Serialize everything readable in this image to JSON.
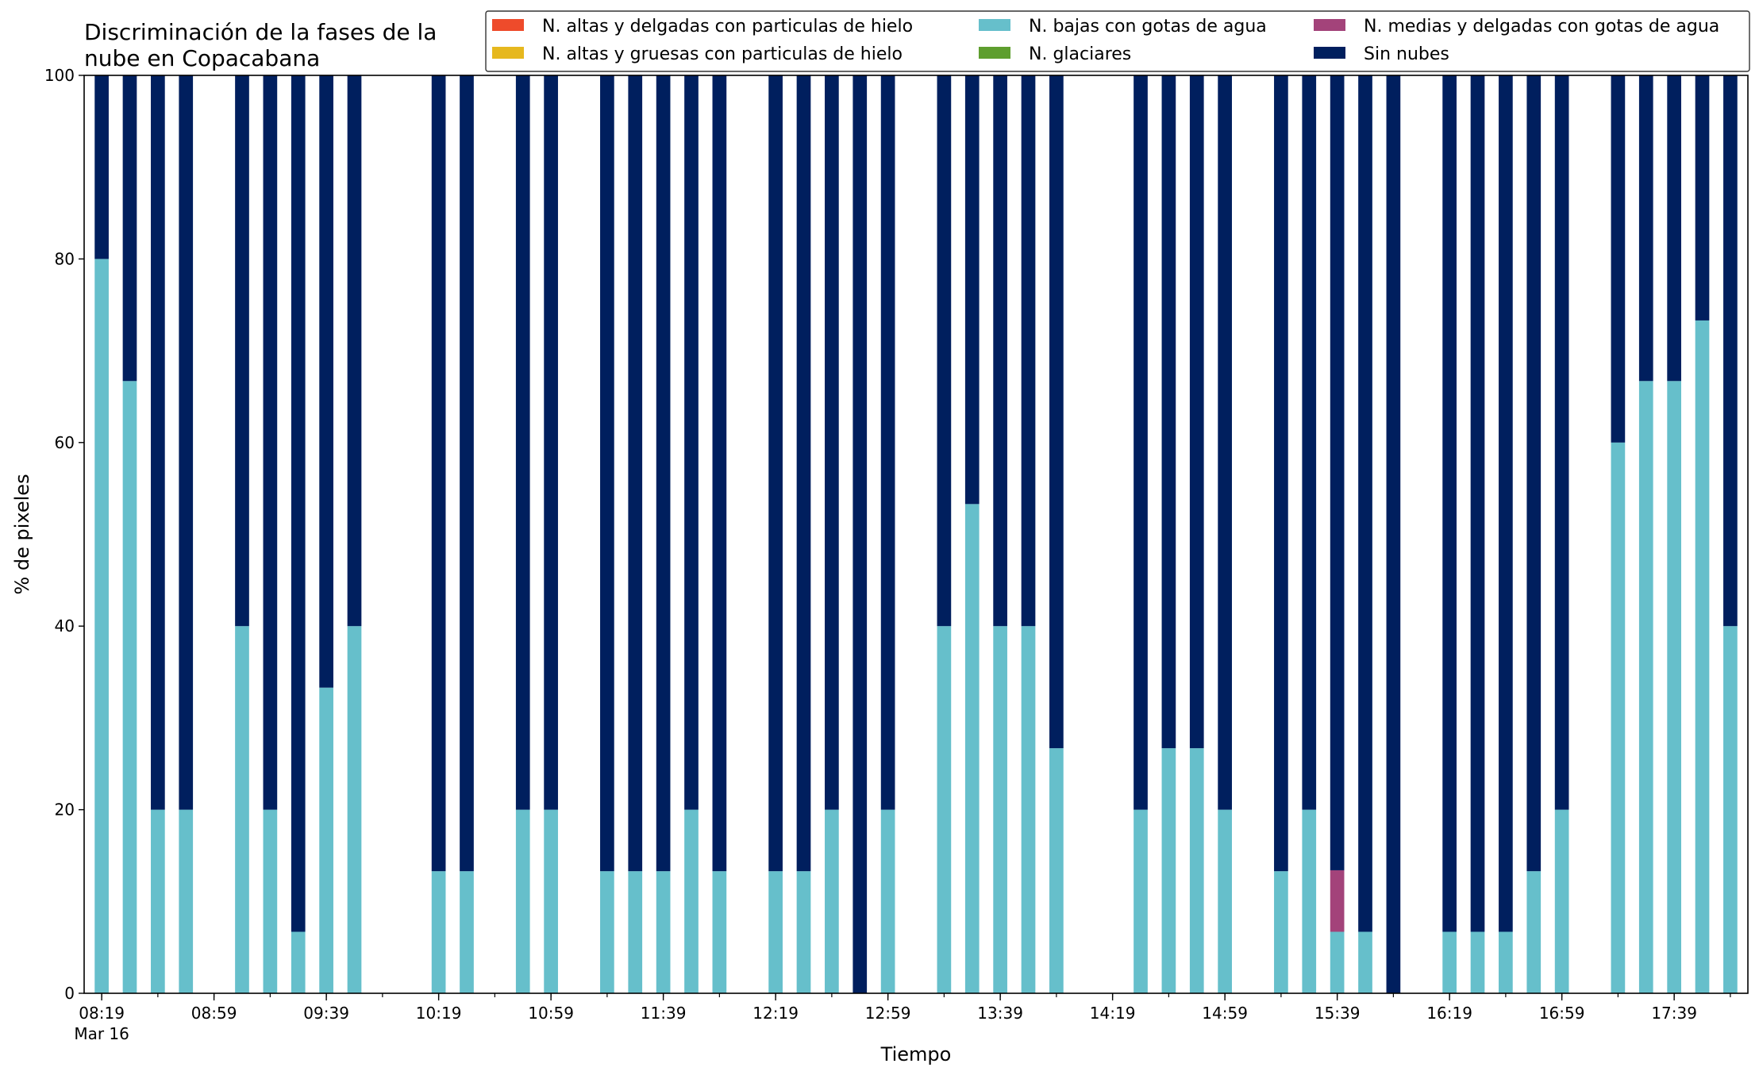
{
  "chart_data": {
    "type": "bar",
    "stacked": true,
    "title_lines": [
      "Discriminación de la fases de la",
      "nube en Copacabana"
    ],
    "xlabel": "Tiempo",
    "ylabel": "% de pixeles",
    "ylim": [
      0,
      100
    ],
    "yticks": [
      0,
      20,
      40,
      60,
      80,
      100
    ],
    "x_start": "08:19",
    "x_end": "17:59",
    "bar_step_minutes": 10,
    "xtick_labels": [
      "08:19",
      "08:59",
      "09:39",
      "10:19",
      "10:59",
      "11:39",
      "12:19",
      "12:59",
      "13:39",
      "14:19",
      "14:59",
      "15:39",
      "16:19",
      "16:59",
      "17:39"
    ],
    "xtick_sublabel": "Mar 16",
    "legend_position": "top-right",
    "grid": false,
    "series": [
      {
        "name": "N. altas y delgadas con particulas de hielo",
        "color": "#ee4b2b"
      },
      {
        "name": "N. altas y gruesas con particulas de hielo",
        "color": "#e6b81e"
      },
      {
        "name": "N. bajas con gotas de agua",
        "color": "#66bfcb"
      },
      {
        "name": "N. glaciares",
        "color": "#5e9e2e"
      },
      {
        "name": "N. medias y delgadas con gotas de agua",
        "color": "#a3437a"
      },
      {
        "name": "Sin nubes",
        "color": "#001f5e"
      }
    ],
    "bars": [
      {
        "time": "08:19",
        "N. bajas con gotas de agua": 80,
        "N. medias y delgadas con gotas de agua": 0,
        "Sin nubes": 20
      },
      {
        "time": "08:29",
        "N. bajas con gotas de agua": 66.7,
        "N. medias y delgadas con gotas de agua": 0,
        "Sin nubes": 33.3
      },
      {
        "time": "08:39",
        "N. bajas con gotas de agua": 20,
        "N. medias y delgadas con gotas de agua": 0,
        "Sin nubes": 80
      },
      {
        "time": "08:49",
        "N. bajas con gotas de agua": 20,
        "N. medias y delgadas con gotas de agua": 0,
        "Sin nubes": 80
      },
      {
        "time": "09:09",
        "N. bajas con gotas de agua": 40,
        "N. medias y delgadas con gotas de agua": 0,
        "Sin nubes": 60
      },
      {
        "time": "09:19",
        "N. bajas con gotas de agua": 20,
        "N. medias y delgadas con gotas de agua": 0,
        "Sin nubes": 80
      },
      {
        "time": "09:29",
        "N. bajas con gotas de agua": 6.7,
        "N. medias y delgadas con gotas de agua": 0,
        "Sin nubes": 93.3
      },
      {
        "time": "09:39",
        "N. bajas con gotas de agua": 33.3,
        "N. medias y delgadas con gotas de agua": 0,
        "Sin nubes": 66.7
      },
      {
        "time": "09:49",
        "N. bajas con gotas de agua": 40,
        "N. medias y delgadas con gotas de agua": 0,
        "Sin nubes": 60
      },
      {
        "time": "10:19",
        "N. bajas con gotas de agua": 13.3,
        "N. medias y delgadas con gotas de agua": 0,
        "Sin nubes": 86.7
      },
      {
        "time": "10:29",
        "N. bajas con gotas de agua": 13.3,
        "N. medias y delgadas con gotas de agua": 0,
        "Sin nubes": 86.7
      },
      {
        "time": "10:49",
        "N. bajas con gotas de agua": 20,
        "N. medias y delgadas con gotas de agua": 0,
        "Sin nubes": 80
      },
      {
        "time": "10:59",
        "N. bajas con gotas de agua": 20,
        "N. medias y delgadas con gotas de agua": 0,
        "Sin nubes": 80
      },
      {
        "time": "11:19",
        "N. bajas con gotas de agua": 13.3,
        "N. medias y delgadas con gotas de agua": 0,
        "Sin nubes": 86.7
      },
      {
        "time": "11:29",
        "N. bajas con gotas de agua": 13.3,
        "N. medias y delgadas con gotas de agua": 0,
        "Sin nubes": 86.7
      },
      {
        "time": "11:39",
        "N. bajas con gotas de agua": 13.3,
        "N. medias y delgadas con gotas de agua": 0,
        "Sin nubes": 86.7
      },
      {
        "time": "11:49",
        "N. bajas con gotas de agua": 20,
        "N. medias y delgadas con gotas de agua": 0,
        "Sin nubes": 80
      },
      {
        "time": "11:59",
        "N. bajas con gotas de agua": 13.3,
        "N. medias y delgadas con gotas de agua": 0,
        "Sin nubes": 86.7
      },
      {
        "time": "12:19",
        "N. bajas con gotas de agua": 13.3,
        "N. medias y delgadas con gotas de agua": 0,
        "Sin nubes": 86.7
      },
      {
        "time": "12:29",
        "N. bajas con gotas de agua": 13.3,
        "N. medias y delgadas con gotas de agua": 0,
        "Sin nubes": 86.7
      },
      {
        "time": "12:39",
        "N. bajas con gotas de agua": 20,
        "N. medias y delgadas con gotas de agua": 0,
        "Sin nubes": 80
      },
      {
        "time": "12:49",
        "N. bajas con gotas de agua": 0,
        "N. medias y delgadas con gotas de agua": 0,
        "Sin nubes": 100
      },
      {
        "time": "12:59",
        "N. bajas con gotas de agua": 20,
        "N. medias y delgadas con gotas de agua": 0,
        "Sin nubes": 80
      },
      {
        "time": "13:19",
        "N. bajas con gotas de agua": 40,
        "N. medias y delgadas con gotas de agua": 0,
        "Sin nubes": 60
      },
      {
        "time": "13:29",
        "N. bajas con gotas de agua": 53.3,
        "N. medias y delgadas con gotas de agua": 0,
        "Sin nubes": 46.7
      },
      {
        "time": "13:39",
        "N. bajas con gotas de agua": 40,
        "N. medias y delgadas con gotas de agua": 0,
        "Sin nubes": 60
      },
      {
        "time": "13:49",
        "N. bajas con gotas de agua": 40,
        "N. medias y delgadas con gotas de agua": 0,
        "Sin nubes": 60
      },
      {
        "time": "13:59",
        "N. bajas con gotas de agua": 26.7,
        "N. medias y delgadas con gotas de agua": 0,
        "Sin nubes": 73.3
      },
      {
        "time": "14:29",
        "N. bajas con gotas de agua": 20,
        "N. medias y delgadas con gotas de agua": 0,
        "Sin nubes": 80
      },
      {
        "time": "14:39",
        "N. bajas con gotas de agua": 26.7,
        "N. medias y delgadas con gotas de agua": 0,
        "Sin nubes": 73.3
      },
      {
        "time": "14:49",
        "N. bajas con gotas de agua": 26.7,
        "N. medias y delgadas con gotas de agua": 0,
        "Sin nubes": 73.3
      },
      {
        "time": "14:59",
        "N. bajas con gotas de agua": 20,
        "N. medias y delgadas con gotas de agua": 0,
        "Sin nubes": 80
      },
      {
        "time": "15:19",
        "N. bajas con gotas de agua": 13.3,
        "N. medias y delgadas con gotas de agua": 0,
        "Sin nubes": 86.7
      },
      {
        "time": "15:29",
        "N. bajas con gotas de agua": 20,
        "N. medias y delgadas con gotas de agua": 0,
        "Sin nubes": 80
      },
      {
        "time": "15:39",
        "N. bajas con gotas de agua": 6.7,
        "N. medias y delgadas con gotas de agua": 6.7,
        "Sin nubes": 86.6
      },
      {
        "time": "15:49",
        "N. bajas con gotas de agua": 6.7,
        "N. medias y delgadas con gotas de agua": 0,
        "Sin nubes": 93.3
      },
      {
        "time": "15:59",
        "N. bajas con gotas de agua": 0,
        "N. medias y delgadas con gotas de agua": 0,
        "Sin nubes": 100
      },
      {
        "time": "16:19",
        "N. bajas con gotas de agua": 6.7,
        "N. medias y delgadas con gotas de agua": 0,
        "Sin nubes": 93.3
      },
      {
        "time": "16:29",
        "N. bajas con gotas de agua": 6.7,
        "N. medias y delgadas con gotas de agua": 0,
        "Sin nubes": 93.3
      },
      {
        "time": "16:39",
        "N. bajas con gotas de agua": 6.7,
        "N. medias y delgadas con gotas de agua": 0,
        "Sin nubes": 93.3
      },
      {
        "time": "16:49",
        "N. bajas con gotas de agua": 13.3,
        "N. medias y delgadas con gotas de agua": 0,
        "Sin nubes": 86.7
      },
      {
        "time": "16:59",
        "N. bajas con gotas de agua": 20,
        "N. medias y delgadas con gotas de agua": 0,
        "Sin nubes": 80
      },
      {
        "time": "17:19",
        "N. bajas con gotas de agua": 60,
        "N. medias y delgadas con gotas de agua": 0,
        "Sin nubes": 40
      },
      {
        "time": "17:29",
        "N. bajas con gotas de agua": 66.7,
        "N. medias y delgadas con gotas de agua": 0,
        "Sin nubes": 33.3
      },
      {
        "time": "17:39",
        "N. bajas con gotas de agua": 66.7,
        "N. medias y delgadas con gotas de agua": 0,
        "Sin nubes": 33.3
      },
      {
        "time": "17:49",
        "N. bajas con gotas de agua": 73.3,
        "N. medias y delgadas con gotas de agua": 0,
        "Sin nubes": 26.7
      },
      {
        "time": "17:59",
        "N. bajas con gotas de agua": 40,
        "N. medias y delgadas con gotas de agua": 0,
        "Sin nubes": 60
      }
    ]
  }
}
